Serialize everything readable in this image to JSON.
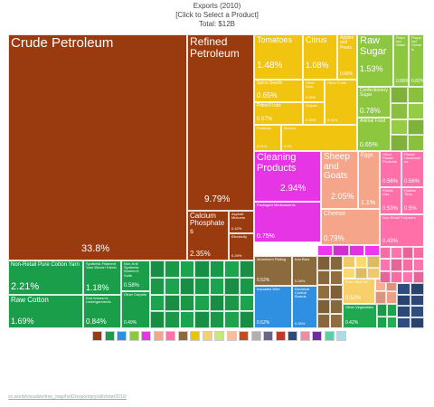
{
  "header": {
    "title": "Exports (2010)",
    "subtitle": "[Click to Select a Product]",
    "total": "Total: $12B"
  },
  "source_url": "oc.world/visualize/tree_map/hs92/export/pry/all/show/2010/",
  "chart_data": {
    "type": "treemap",
    "title": "Exports (2010)",
    "total_label": "Total: $12B",
    "items": [
      {
        "label": "Crude Petroleum",
        "percent": "33.8%",
        "value": 33.8,
        "color": "#9a3a0f"
      },
      {
        "label": "Refined Petroleum",
        "percent": "9.79%",
        "value": 9.79,
        "color": "#9a3a0f"
      },
      {
        "label": "Calcium Phosphates",
        "percent": "2.35%",
        "value": 2.35,
        "color": "#9a3a0f"
      },
      {
        "label": "Asphalt Mixtures",
        "percent": "0.42%",
        "value": 0.42,
        "color": "#9a3a0f"
      },
      {
        "label": "Electricity",
        "percent": "0.29%",
        "value": 0.29,
        "color": "#9a3a0f"
      },
      {
        "label": "Tomatoes",
        "percent": "1.48%",
        "value": 1.48,
        "color": "#f1c40f"
      },
      {
        "label": "Citrus",
        "percent": "1.08%",
        "value": 1.08,
        "color": "#f1c40f"
      },
      {
        "label": "Apples and Pears",
        "percent": "0.68%",
        "value": 0.68,
        "color": "#f1c40f"
      },
      {
        "label": "Spice Seeds",
        "percent": "0.65%",
        "value": 0.65,
        "color": "#f1c40f"
      },
      {
        "label": "Pitted Fruits",
        "percent": "0.57%",
        "value": 0.57,
        "color": "#f1c40f"
      },
      {
        "label": "Other Nuts",
        "percent": "0.39%",
        "value": 0.39,
        "color": "#f1c40f"
      },
      {
        "label": "Grapes",
        "percent": "0.33%",
        "value": 0.33,
        "color": "#f1c40f"
      },
      {
        "label": "Other Fruits",
        "percent": "0.31%",
        "value": 0.31,
        "color": "#f1c40f"
      },
      {
        "label": "Potatoes",
        "percent": "0.41%",
        "value": 0.41,
        "color": "#f1c40f"
      },
      {
        "label": "Melons",
        "percent": "0.4%",
        "value": 0.4,
        "color": "#f1c40f"
      },
      {
        "label": "Raw Sugar",
        "percent": "1.53%",
        "value": 1.53,
        "color": "#8dc63f"
      },
      {
        "label": "Flavored Water",
        "percent": "0.88%",
        "value": 0.88,
        "color": "#8dc63f"
      },
      {
        "label": "Prepared Cereals",
        "percent": "0.82%",
        "value": 0.82,
        "color": "#8dc63f"
      },
      {
        "label": "Confectionery Sugar",
        "percent": "0.78%",
        "value": 0.78,
        "color": "#8dc63f"
      },
      {
        "label": "Animal Food",
        "percent": "0.65%",
        "value": 0.65,
        "color": "#8dc63f"
      },
      {
        "label": "Cleaning Products",
        "percent": "2.94%",
        "value": 2.94,
        "color": "#e535e5"
      },
      {
        "label": "Packaged Medicaments",
        "percent": "0.75%",
        "value": 0.75,
        "color": "#e535e5"
      },
      {
        "label": "Sheep and Goats",
        "percent": "2.05%",
        "value": 2.05,
        "color": "#f4a58a"
      },
      {
        "label": "Eggs",
        "percent": "1.1%",
        "value": 1.1,
        "color": "#f4a58a"
      },
      {
        "label": "Cheese",
        "percent": "0.79%",
        "value": 0.79,
        "color": "#f4a58a"
      },
      {
        "label": "Other Plastic Products",
        "percent": "0.56%",
        "value": 0.56,
        "color": "#ff6fa8"
      },
      {
        "label": "Plastic Housewares",
        "percent": "0.56%",
        "value": 0.56,
        "color": "#ff6fa8"
      },
      {
        "label": "Plastic Lids",
        "percent": "0.53%",
        "value": 0.53,
        "color": "#ff6fa8"
      },
      {
        "label": "Rubber Tires",
        "percent": "0.5%",
        "value": 0.5,
        "color": "#ff6fa8"
      },
      {
        "label": "Non-Retail Polymers",
        "percent": "0.43%",
        "value": 0.43,
        "color": "#ff6fa8"
      },
      {
        "label": "Non-Retail Pure Cotton Yarn",
        "percent": "2.21%",
        "value": 2.21,
        "color": "#1a9e4a"
      },
      {
        "label": "Synthetic Filament Yarn Woven Fabric",
        "percent": "1.18%",
        "value": 1.18,
        "color": "#1a9e4a"
      },
      {
        "label": "Raw Cotton",
        "percent": "1.69%",
        "value": 1.69,
        "color": "#1a9e4a"
      },
      {
        "label": "Knit Women's Undergarments",
        "percent": "0.84%",
        "value": 0.84,
        "color": "#1a9e4a"
      },
      {
        "label": "Non-Knit Synthetic Women's Suits",
        "percent": "0.58%",
        "value": 0.58,
        "color": "#1a9e4a"
      },
      {
        "label": "Other Carpets",
        "percent": "0.49%",
        "value": 0.49,
        "color": "#1a9e4a"
      },
      {
        "label": "Aluminium Plating",
        "percent": "0.52%",
        "value": 0.52,
        "color": "#8b6a3e"
      },
      {
        "label": "Iron Bars",
        "percent": "0.34%",
        "value": 0.34,
        "color": "#8b6a3e"
      },
      {
        "label": "Insulated Wire",
        "percent": "0.52%",
        "value": 0.52,
        "color": "#2f8fe0"
      },
      {
        "label": "Electrical Control Boards",
        "percent": "0.34%",
        "value": 0.34,
        "color": "#2f8fe0"
      },
      {
        "label": "Pure Olive Oil",
        "percent": "0.52%",
        "value": 0.52,
        "color": "#f7d06a"
      },
      {
        "label": "Other Vegetables",
        "percent": "0.42%",
        "value": 0.42,
        "color": "#1fa84f"
      }
    ],
    "legend_colors": [
      "#9a3a0f",
      "#1a9e4a",
      "#2f8fe0",
      "#8dc63f",
      "#e535e5",
      "#f4a58a",
      "#ff6fa8",
      "#8b6a3e",
      "#e8c700",
      "#f7d06a",
      "#c7e87a",
      "#ffbc9a",
      "#c94a1a",
      "#b0b0b0",
      "#666688",
      "#c0392b",
      "#2e4a7a",
      "#f08ca0",
      "#6b2fa0",
      "#5ad1a4",
      "#aadcf0"
    ]
  }
}
